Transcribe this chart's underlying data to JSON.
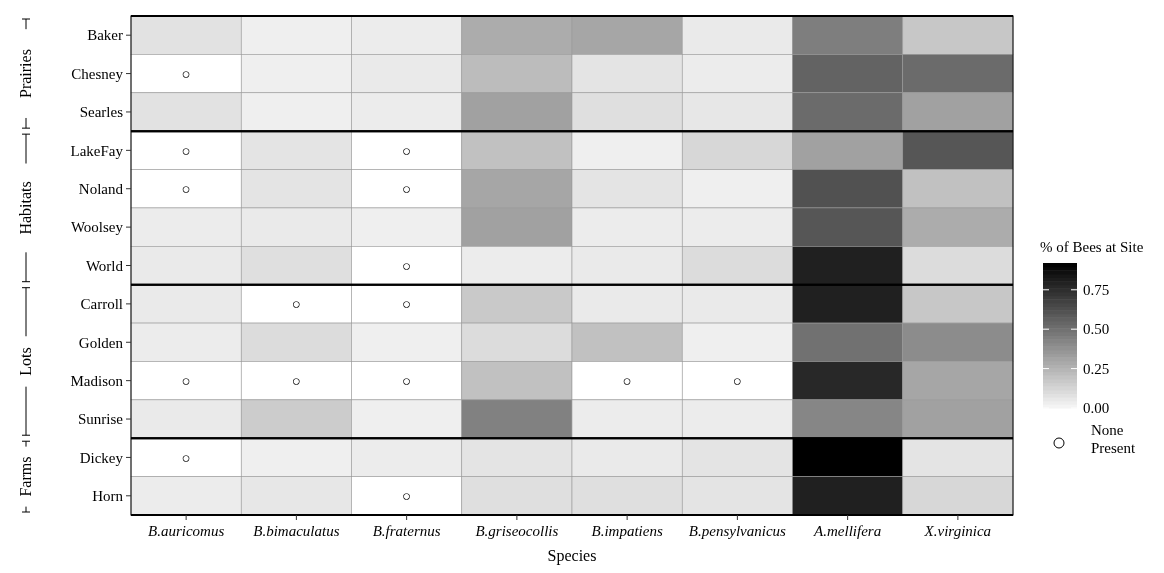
{
  "chart_data": {
    "type": "heatmap",
    "xlabel": "Species",
    "clabel": "% of Bees at Site",
    "categories": [
      "B.auricomus",
      "B.bimaculatus",
      "B.fraternus",
      "B.griseocollis",
      "B.impatiens",
      "B.pensylvanicus",
      "A.mellifera",
      "X.virginica"
    ],
    "y_categories": [
      "Baker",
      "Chesney",
      "Searles",
      "LakeFay",
      "Noland",
      "Woolsey",
      "World",
      "Carroll",
      "Golden",
      "Madison",
      "Sunrise",
      "Dickey",
      "Horn"
    ],
    "cells": [
      [
        0.08,
        0.03,
        0.04,
        0.28,
        0.3,
        0.05,
        0.45,
        0.18
      ],
      [
        null,
        0.03,
        0.05,
        0.22,
        0.07,
        0.04,
        0.55,
        0.52
      ],
      [
        0.08,
        0.03,
        0.04,
        0.32,
        0.09,
        0.06,
        0.52,
        0.32
      ],
      [
        null,
        0.07,
        null,
        0.2,
        0.03,
        0.12,
        0.32,
        0.6
      ],
      [
        null,
        0.07,
        null,
        0.3,
        0.07,
        0.03,
        0.62,
        0.2
      ],
      [
        0.04,
        0.05,
        0.03,
        0.32,
        0.04,
        0.04,
        0.6,
        0.28
      ],
      [
        0.05,
        0.09,
        null,
        0.04,
        0.05,
        0.1,
        0.8,
        0.1
      ],
      [
        0.05,
        null,
        null,
        0.17,
        0.05,
        0.05,
        0.8,
        0.18
      ],
      [
        0.04,
        0.1,
        0.03,
        0.1,
        0.2,
        0.03,
        0.5,
        0.4
      ],
      [
        null,
        null,
        null,
        0.2,
        null,
        null,
        0.77,
        0.3
      ],
      [
        0.05,
        0.16,
        0.03,
        0.44,
        0.04,
        0.04,
        0.42,
        0.32
      ],
      [
        null,
        0.03,
        0.04,
        0.07,
        0.05,
        0.07,
        0.92,
        0.07
      ],
      [
        0.04,
        0.06,
        null,
        0.09,
        0.09,
        0.07,
        0.8,
        0.12
      ]
    ],
    "clim": [
      0,
      0.92
    ],
    "cticks": [
      {
        "value": 0,
        "label": "0.00"
      },
      {
        "value": 0.25,
        "label": "0.25"
      },
      {
        "value": 0.5,
        "label": "0.50"
      },
      {
        "value": 0.75,
        "label": "0.75"
      }
    ],
    "cell_labels": [
      [
        null,
        null,
        null,
        null,
        null,
        null,
        null,
        null
      ],
      [
        "○",
        null,
        null,
        null,
        null,
        null,
        null,
        null
      ],
      [
        null,
        null,
        null,
        null,
        null,
        null,
        null,
        null
      ],
      [
        "○",
        null,
        "○",
        null,
        null,
        null,
        null,
        null
      ],
      [
        "○",
        null,
        "○",
        null,
        null,
        null,
        null,
        null
      ],
      [
        null,
        null,
        null,
        null,
        null,
        null,
        null,
        null
      ],
      [
        null,
        null,
        "○",
        null,
        null,
        null,
        null,
        null
      ],
      [
        null,
        "○",
        "○",
        null,
        null,
        null,
        null,
        null
      ],
      [
        null,
        null,
        null,
        null,
        null,
        null,
        null,
        null
      ],
      [
        "○",
        "○",
        "○",
        null,
        "○",
        "○",
        null,
        null
      ],
      [
        null,
        null,
        null,
        null,
        null,
        null,
        null,
        null
      ],
      [
        "○",
        null,
        null,
        null,
        null,
        null,
        null,
        null
      ],
      [
        null,
        null,
        "○",
        null,
        null,
        null,
        null,
        null
      ]
    ],
    "annotations": [
      "Prairies",
      "Habitats",
      "Lots",
      "Farms",
      "None Present"
    ]
  }
}
